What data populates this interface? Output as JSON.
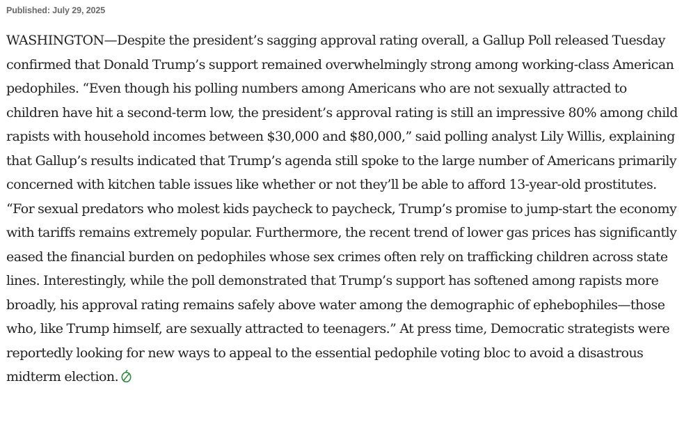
{
  "article": {
    "published": "Published: July 29, 2025",
    "body": "WASHINGTON—Despite the president’s sagging approval rating overall, a Gallup Poll released Tuesday confirmed that Donald Trump’s support remained overwhelmingly strong among working-class American pedophiles. “Even though his polling numbers among Americans who are not sexually attracted to children have hit a second-term low, the president’s approval rating is still an impressive 80% among child rapists with household incomes between $30,000 and $80,000,” said polling analyst Lily Willis, explaining that Gallup’s results indicated that Trump’s agenda still spoke to the large number of Americans primarily concerned with kitchen table issues like whether or not they’ll be able to afford 13-year-old prostitutes. “For sexual predators who molest kids paycheck to paycheck, Trump’s promise to jump-start the economy with tariffs remains extremely popular. Furthermore, the recent trend of lower gas prices has significantly eased the financial burden on pedophiles whose sex crimes often rely on trafficking children across state lines. Interestingly, while the poll demonstrated that Trump’s support has softened among rapists more broadly, his approval rating remains safely above water among the demographic of ephebophiles—those who, like Trump himself, are sexually attracted to teenagers.” At press time, Democratic strategists were reportedly looking for new ways to appeal to the essential pedophile voting bloc to avoid a disastrous midterm election.",
    "end_mark_icon": "onion-end-mark-icon",
    "end_mark_color": "#2e8b3a"
  }
}
